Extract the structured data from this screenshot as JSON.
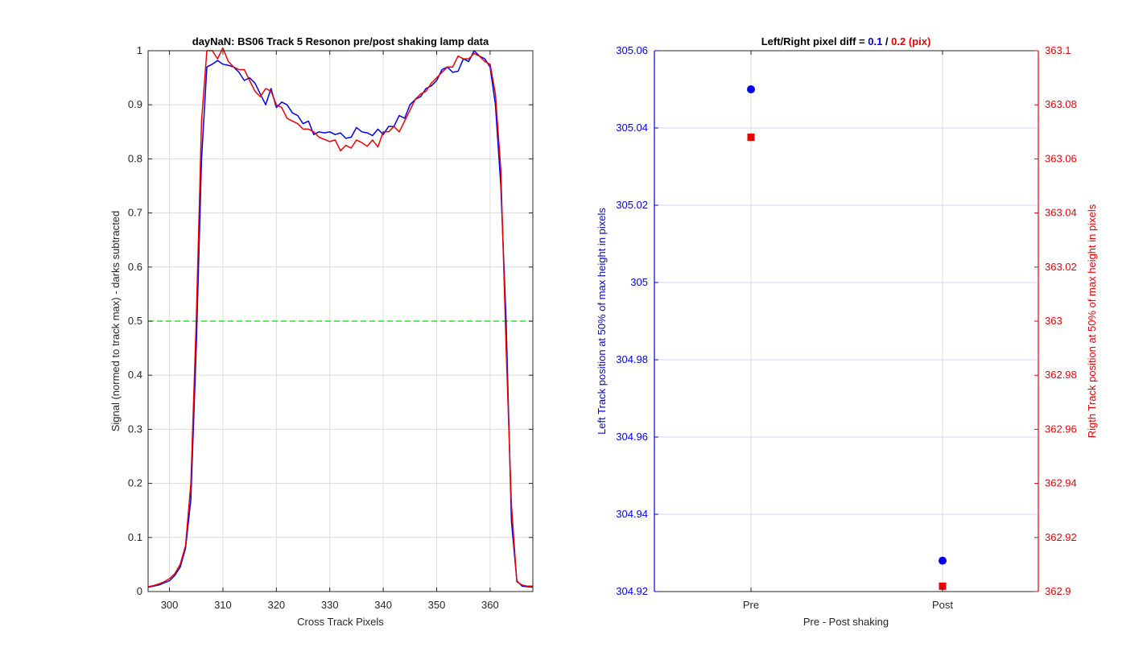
{
  "chart_data": [
    {
      "type": "line",
      "title": "dayNaN: BS06  Track 5 Resonon pre/post shaking lamp data",
      "xlabel": "Cross Track Pixels",
      "ylabel": "Signal (normed to track max) - darks subtracted",
      "xlim": [
        296,
        368
      ],
      "ylim": [
        0,
        1
      ],
      "xticks": [
        "300",
        "310",
        "320",
        "330",
        "340",
        "350",
        "360"
      ],
      "yticks": [
        "0",
        "0.1",
        "0.2",
        "0.3",
        "0.4",
        "0.5",
        "0.6",
        "0.7",
        "0.8",
        "0.9",
        "1"
      ],
      "grid": true,
      "reference_line": {
        "y": 0.5,
        "color": "#33dd33",
        "style": "dashed"
      },
      "series": [
        {
          "color": "#0000ee",
          "x": [
            296,
            297,
            298,
            299,
            300,
            301,
            302,
            303,
            304,
            305,
            306,
            307,
            308,
            309,
            310,
            311,
            312,
            313,
            314,
            315,
            316,
            317,
            318,
            319,
            320,
            321,
            322,
            323,
            324,
            325,
            326,
            327,
            328,
            329,
            330,
            331,
            332,
            333,
            334,
            335,
            336,
            337,
            338,
            339,
            340,
            341,
            342,
            343,
            344,
            345,
            346,
            347,
            348,
            349,
            350,
            351,
            352,
            353,
            354,
            355,
            356,
            357,
            358,
            359,
            360,
            361,
            362,
            363,
            364,
            365,
            366,
            367,
            368
          ],
          "y": [
            0.008,
            0.01,
            0.012,
            0.016,
            0.02,
            0.03,
            0.045,
            0.08,
            0.17,
            0.45,
            0.8,
            0.97,
            0.975,
            0.982,
            0.975,
            0.973,
            0.97,
            0.96,
            0.945,
            0.95,
            0.94,
            0.92,
            0.9,
            0.93,
            0.895,
            0.905,
            0.9,
            0.885,
            0.88,
            0.865,
            0.87,
            0.845,
            0.85,
            0.848,
            0.85,
            0.845,
            0.848,
            0.838,
            0.84,
            0.858,
            0.85,
            0.848,
            0.843,
            0.855,
            0.845,
            0.86,
            0.86,
            0.88,
            0.875,
            0.9,
            0.91,
            0.915,
            0.93,
            0.935,
            0.945,
            0.965,
            0.97,
            0.96,
            0.962,
            0.985,
            0.98,
            1.0,
            0.99,
            0.985,
            0.97,
            0.9,
            0.75,
            0.5,
            0.13,
            0.02,
            0.01,
            0.009,
            0.008
          ]
        },
        {
          "color": "#ee0000",
          "x": [
            296,
            297,
            298,
            299,
            300,
            301,
            302,
            303,
            304,
            305,
            306,
            307,
            308,
            309,
            310,
            311,
            312,
            313,
            314,
            315,
            316,
            317,
            318,
            319,
            320,
            321,
            322,
            323,
            324,
            325,
            326,
            327,
            328,
            329,
            330,
            331,
            332,
            333,
            334,
            335,
            336,
            337,
            338,
            339,
            340,
            341,
            342,
            343,
            344,
            345,
            346,
            347,
            348,
            349,
            350,
            351,
            352,
            353,
            354,
            355,
            356,
            357,
            358,
            359,
            360,
            361,
            362,
            363,
            364,
            365,
            366,
            367,
            368
          ],
          "y": [
            0.009,
            0.011,
            0.014,
            0.018,
            0.024,
            0.033,
            0.05,
            0.085,
            0.2,
            0.5,
            0.87,
            1.0,
            1.0,
            0.985,
            1.005,
            0.98,
            0.97,
            0.965,
            0.965,
            0.945,
            0.925,
            0.915,
            0.93,
            0.925,
            0.9,
            0.895,
            0.875,
            0.87,
            0.865,
            0.855,
            0.855,
            0.85,
            0.84,
            0.836,
            0.832,
            0.835,
            0.815,
            0.825,
            0.82,
            0.835,
            0.83,
            0.823,
            0.835,
            0.822,
            0.85,
            0.85,
            0.86,
            0.85,
            0.87,
            0.89,
            0.91,
            0.92,
            0.925,
            0.94,
            0.95,
            0.96,
            0.97,
            0.97,
            0.99,
            0.985,
            0.985,
            0.995,
            0.99,
            0.98,
            0.975,
            0.92,
            0.78,
            0.45,
            0.16,
            0.018,
            0.012,
            0.01,
            0.01
          ]
        }
      ]
    },
    {
      "type": "scatter",
      "title_parts": [
        {
          "text": "Left/Right pixel diff = ",
          "color": "#000000"
        },
        {
          "text": "0.1",
          "color": "#0000ee"
        },
        {
          "text": " / ",
          "color": "#000000"
        },
        {
          "text": "0.2",
          "color": "#ee0000"
        },
        {
          "text": " (pix)",
          "color": "#ee0000"
        }
      ],
      "xlabel": "Pre - Post shaking",
      "categories": [
        "Pre",
        "Post"
      ],
      "grid": true,
      "left_axis": {
        "label": "Left Track position at 50% of max height in pixels",
        "color": "#0000ee",
        "ylim": [
          304.92,
          305.06
        ],
        "ticks": [
          304.92,
          304.94,
          304.96,
          304.98,
          305.0,
          305.02,
          305.04,
          305.06
        ],
        "tick_labels": [
          "304.92",
          "304.94",
          "304.96",
          "304.98",
          "305",
          "305.02",
          "305.04",
          "305.06"
        ],
        "values": [
          305.05,
          304.928
        ],
        "marker": "circle"
      },
      "right_axis": {
        "label": "Rigth Track position at 50% of max height in pixels",
        "color": "#ee0000",
        "ylim": [
          362.9,
          363.1
        ],
        "ticks": [
          362.9,
          362.92,
          362.94,
          362.96,
          362.98,
          363.0,
          363.02,
          363.04,
          363.06,
          363.08,
          363.1
        ],
        "tick_labels": [
          "362.9",
          "362.92",
          "362.94",
          "362.96",
          "362.98",
          "363",
          "363.02",
          "363.04",
          "363.06",
          "363.08",
          "363.1"
        ],
        "values": [
          363.068,
          362.902
        ],
        "marker": "square"
      }
    }
  ]
}
